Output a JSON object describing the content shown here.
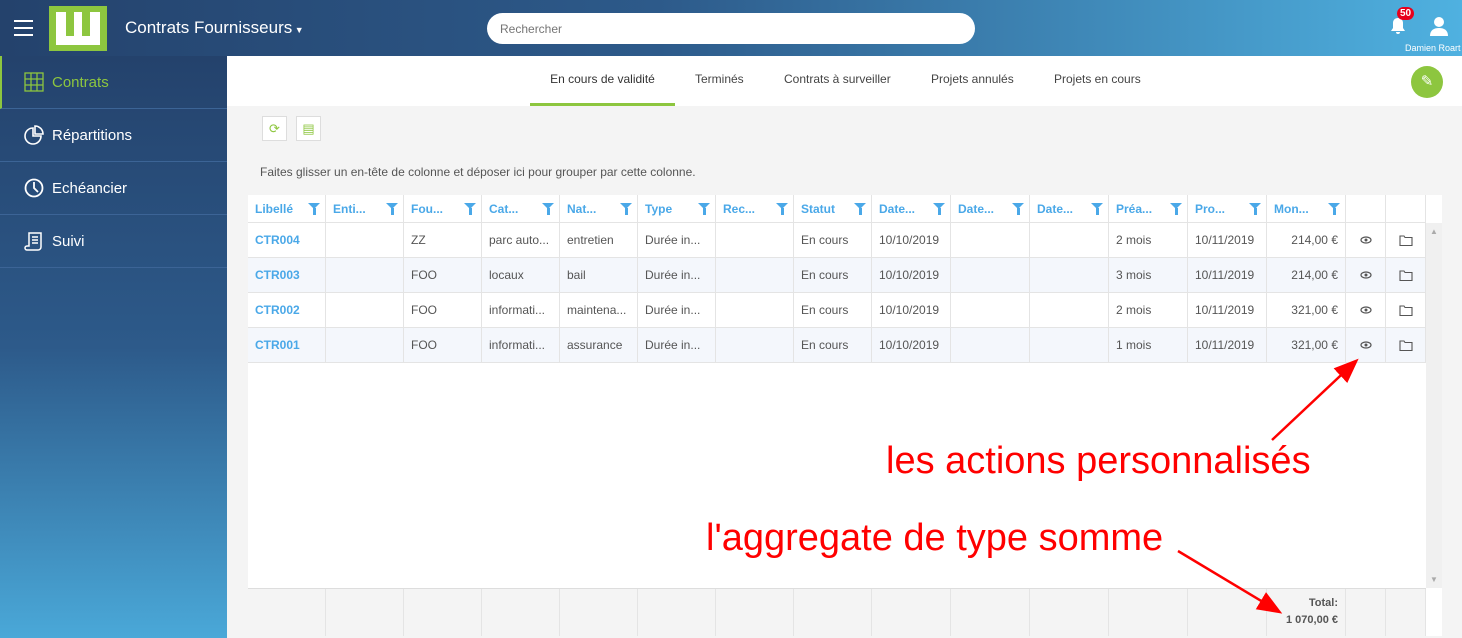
{
  "header": {
    "app_title": "Contrats Fournisseurs",
    "search_placeholder": "Rechercher",
    "notifications": "50",
    "user_name": "Damien Roart"
  },
  "sidebar": {
    "items": [
      {
        "label": "Contrats",
        "icon": "grid-icon",
        "active": true
      },
      {
        "label": "Répartitions",
        "icon": "pie-chart-icon"
      },
      {
        "label": "Echéancier",
        "icon": "clock-icon"
      },
      {
        "label": "Suivi",
        "icon": "scroll-icon"
      }
    ]
  },
  "tabs": [
    {
      "label": "En cours de validité",
      "active": true
    },
    {
      "label": "Terminés"
    },
    {
      "label": "Contrats à surveiller"
    },
    {
      "label": "Projets annulés"
    },
    {
      "label": "Projets en cours"
    }
  ],
  "group_hint": "Faites glisser un en-tête de colonne et déposer ici pour grouper par cette colonne.",
  "columns": [
    "Libellé",
    "Enti...",
    "Fou...",
    "Cat...",
    "Nat...",
    "Type",
    "Rec...",
    "Statut",
    "Date...",
    "Date...",
    "Date...",
    "Préa...",
    "Pro...",
    "Mon..."
  ],
  "rows": [
    [
      "CTR004",
      "",
      "ZZ",
      "parc auto...",
      "entretien",
      "Durée in...",
      "",
      "En cours",
      "10/10/2019",
      "",
      "",
      "2 mois",
      "10/11/2019",
      "214,00 €"
    ],
    [
      "CTR003",
      "",
      "FOO",
      "locaux",
      "bail",
      "Durée in...",
      "",
      "En cours",
      "10/10/2019",
      "",
      "",
      "3 mois",
      "10/11/2019",
      "214,00 €"
    ],
    [
      "CTR002",
      "",
      "FOO",
      "informati...",
      "maintena...",
      "Durée in...",
      "",
      "En cours",
      "10/10/2019",
      "",
      "",
      "2 mois",
      "10/11/2019",
      "321,00 €"
    ],
    [
      "CTR001",
      "",
      "FOO",
      "informati...",
      "assurance",
      "Durée in...",
      "",
      "En cours",
      "10/10/2019",
      "",
      "",
      "1 mois",
      "10/11/2019",
      "321,00 €"
    ]
  ],
  "footer": {
    "total_label": "Total:",
    "total_value": "1 070,00 €"
  },
  "annotations": {
    "actions": "les actions personnalisés",
    "aggregate": "l'aggregate de type somme"
  },
  "colors": {
    "accent": "#8dc63f",
    "link": "#4aa8e8",
    "annotation": "#ff0000"
  }
}
